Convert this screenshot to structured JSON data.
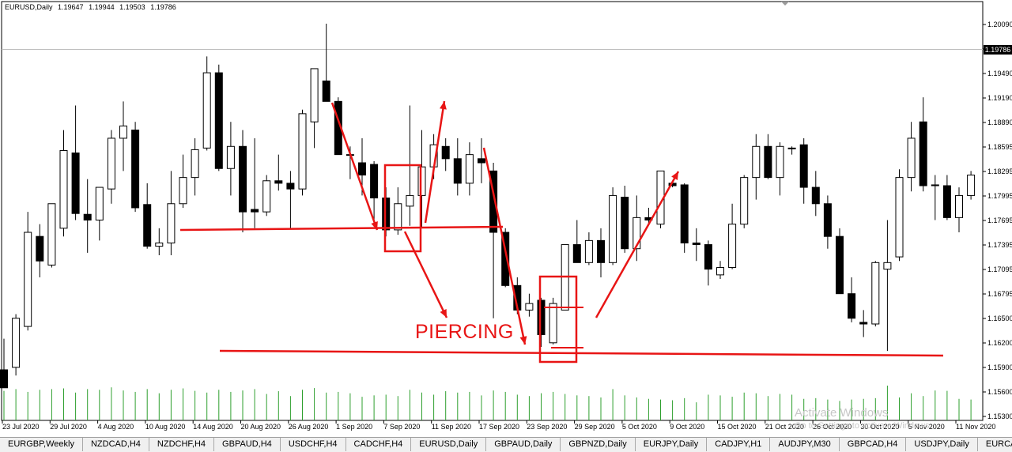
{
  "header": {
    "symbol": "EURUSD,Daily",
    "ohlc": [
      "1.19647",
      "1.19944",
      "1.19503",
      "1.19786"
    ]
  },
  "current_price_label": "1.19786",
  "annotation_label": "PIERCING",
  "watermark": {
    "line1": "Activate Windows",
    "line2": "Go to Settings to activate Windows."
  },
  "colors": {
    "bull_body": "#ffffff",
    "bear_body": "#000000",
    "volume": "#2e9f2e",
    "annotation": "#e81515"
  },
  "tabs": [
    "EURGBP,Weekly",
    "NZDCAD,H4",
    "NZDCHF,H4",
    "GBPAUD,H4",
    "USDCHF,H4",
    "CADCHF,H4",
    "EURUSD,Daily",
    "GBPAUD,Daily",
    "GBPNZD,Daily",
    "EURJPY,Daily",
    "CADJPY,H1",
    "AUDJPY,M30",
    "GBPCAD,H4",
    "USDJPY,Daily",
    "EURCAD,"
  ],
  "chart_data": {
    "type": "candlestick",
    "ylim": [
      1.153,
      1.2032
    ],
    "y_ticks": [
      "1.20090",
      "1.19790",
      "1.19490",
      "1.19190",
      "1.18890",
      "1.18595",
      "1.18295",
      "1.17995",
      "1.17695",
      "1.17395",
      "1.17095",
      "1.16795",
      "1.16500",
      "1.16200",
      "1.15900",
      "1.15600",
      "1.15300"
    ],
    "x_labels": [
      "23 Jul 2020",
      "29 Jul 2020",
      "4 Aug 2020",
      "10 Aug 2020",
      "14 Aug 2020",
      "20 Aug 2020",
      "26 Aug 2020",
      "1 Sep 2020",
      "7 Sep 2020",
      "11 Sep 2020",
      "17 Sep 2020",
      "23 Sep 2020",
      "29 Sep 2020",
      "5 Oct 2020",
      "9 Oct 2020",
      "15 Oct 2020",
      "21 Oct 2020",
      "26 Oct 2020",
      "30 Oct 2020",
      "5 Nov 2020",
      "11 Nov 2020"
    ],
    "candles": [
      {
        "o": 1.1587,
        "h": 1.1625,
        "l": 1.1565,
        "c": 1.1565
      },
      {
        "o": 1.159,
        "h": 1.1655,
        "l": 1.158,
        "c": 1.165
      },
      {
        "o": 1.164,
        "h": 1.178,
        "l": 1.1635,
        "c": 1.1755
      },
      {
        "o": 1.175,
        "h": 1.1765,
        "l": 1.17,
        "c": 1.172
      },
      {
        "o": 1.1715,
        "h": 1.179,
        "l": 1.1712,
        "c": 1.179
      },
      {
        "o": 1.176,
        "h": 1.188,
        "l": 1.175,
        "c": 1.1855
      },
      {
        "o": 1.1852,
        "h": 1.191,
        "l": 1.177,
        "c": 1.1778
      },
      {
        "o": 1.1777,
        "h": 1.182,
        "l": 1.173,
        "c": 1.177
      },
      {
        "o": 1.177,
        "h": 1.181,
        "l": 1.1745,
        "c": 1.181
      },
      {
        "o": 1.1808,
        "h": 1.188,
        "l": 1.179,
        "c": 1.187
      },
      {
        "o": 1.187,
        "h": 1.1915,
        "l": 1.183,
        "c": 1.1885
      },
      {
        "o": 1.188,
        "h": 1.189,
        "l": 1.178,
        "c": 1.1785
      },
      {
        "o": 1.1789,
        "h": 1.1815,
        "l": 1.1735,
        "c": 1.1738
      },
      {
        "o": 1.1738,
        "h": 1.176,
        "l": 1.1727,
        "c": 1.1742
      },
      {
        "o": 1.1742,
        "h": 1.183,
        "l": 1.1727,
        "c": 1.179
      },
      {
        "o": 1.179,
        "h": 1.185,
        "l": 1.1785,
        "c": 1.1822
      },
      {
        "o": 1.1822,
        "h": 1.187,
        "l": 1.18,
        "c": 1.1856
      },
      {
        "o": 1.1858,
        "h": 1.197,
        "l": 1.1855,
        "c": 1.195
      },
      {
        "o": 1.195,
        "h": 1.196,
        "l": 1.183,
        "c": 1.1833
      },
      {
        "o": 1.1833,
        "h": 1.189,
        "l": 1.18,
        "c": 1.186
      },
      {
        "o": 1.186,
        "h": 1.188,
        "l": 1.1755,
        "c": 1.178
      },
      {
        "o": 1.1783,
        "h": 1.187,
        "l": 1.176,
        "c": 1.178
      },
      {
        "o": 1.178,
        "h": 1.1825,
        "l": 1.1775,
        "c": 1.1818
      },
      {
        "o": 1.1818,
        "h": 1.185,
        "l": 1.1806,
        "c": 1.1815
      },
      {
        "o": 1.1815,
        "h": 1.183,
        "l": 1.176,
        "c": 1.1808
      },
      {
        "o": 1.1808,
        "h": 1.1905,
        "l": 1.18,
        "c": 1.19
      },
      {
        "o": 1.189,
        "h": 1.1955,
        "l": 1.1858,
        "c": 1.1955
      },
      {
        "o": 1.194,
        "h": 1.201,
        "l": 1.192,
        "c": 1.1915
      },
      {
        "o": 1.1915,
        "h": 1.192,
        "l": 1.185,
        "c": 1.185
      },
      {
        "o": 1.185,
        "h": 1.186,
        "l": 1.182,
        "c": 1.185
      },
      {
        "o": 1.184,
        "h": 1.187,
        "l": 1.18,
        "c": 1.1825
      },
      {
        "o": 1.1838,
        "h": 1.1842,
        "l": 1.1762,
        "c": 1.1797
      },
      {
        "o": 1.1797,
        "h": 1.181,
        "l": 1.175,
        "c": 1.1758
      },
      {
        "o": 1.1758,
        "h": 1.181,
        "l": 1.1752,
        "c": 1.179
      },
      {
        "o": 1.1787,
        "h": 1.191,
        "l": 1.1763,
        "c": 1.18
      },
      {
        "o": 1.18,
        "h": 1.188,
        "l": 1.176,
        "c": 1.1835
      },
      {
        "o": 1.1835,
        "h": 1.1875,
        "l": 1.182,
        "c": 1.1862
      },
      {
        "o": 1.186,
        "h": 1.187,
        "l": 1.183,
        "c": 1.1845
      },
      {
        "o": 1.1845,
        "h": 1.187,
        "l": 1.18,
        "c": 1.1815
      },
      {
        "o": 1.1815,
        "h": 1.1865,
        "l": 1.18,
        "c": 1.185
      },
      {
        "o": 1.1845,
        "h": 1.187,
        "l": 1.1815,
        "c": 1.184
      },
      {
        "o": 1.183,
        "h": 1.184,
        "l": 1.165,
        "c": 1.1755
      },
      {
        "o": 1.1755,
        "h": 1.176,
        "l": 1.1688,
        "c": 1.169
      },
      {
        "o": 1.169,
        "h": 1.17,
        "l": 1.1655,
        "c": 1.166
      },
      {
        "o": 1.166,
        "h": 1.168,
        "l": 1.1652,
        "c": 1.1668
      },
      {
        "o": 1.1672,
        "h": 1.1675,
        "l": 1.1615,
        "c": 1.163
      },
      {
        "o": 1.162,
        "h": 1.1675,
        "l": 1.1618,
        "c": 1.1668
      },
      {
        "o": 1.166,
        "h": 1.174,
        "l": 1.1665,
        "c": 1.174
      },
      {
        "o": 1.174,
        "h": 1.177,
        "l": 1.172,
        "c": 1.1718
      },
      {
        "o": 1.1718,
        "h": 1.1755,
        "l": 1.1715,
        "c": 1.1745
      },
      {
        "o": 1.1745,
        "h": 1.176,
        "l": 1.17,
        "c": 1.1718
      },
      {
        "o": 1.1718,
        "h": 1.181,
        "l": 1.1715,
        "c": 1.18
      },
      {
        "o": 1.1798,
        "h": 1.1812,
        "l": 1.173,
        "c": 1.1735
      },
      {
        "o": 1.1735,
        "h": 1.18,
        "l": 1.172,
        "c": 1.1773
      },
      {
        "o": 1.1773,
        "h": 1.1785,
        "l": 1.1765,
        "c": 1.177
      },
      {
        "o": 1.1765,
        "h": 1.183,
        "l": 1.176,
        "c": 1.183
      },
      {
        "o": 1.1815,
        "h": 1.1817,
        "l": 1.181,
        "c": 1.1812
      },
      {
        "o": 1.1813,
        "h": 1.1815,
        "l": 1.173,
        "c": 1.1742
      },
      {
        "o": 1.1742,
        "h": 1.176,
        "l": 1.172,
        "c": 1.174
      },
      {
        "o": 1.174,
        "h": 1.1745,
        "l": 1.169,
        "c": 1.171
      },
      {
        "o": 1.1703,
        "h": 1.172,
        "l": 1.1698,
        "c": 1.1712
      },
      {
        "o": 1.1712,
        "h": 1.179,
        "l": 1.171,
        "c": 1.1765
      },
      {
        "o": 1.1765,
        "h": 1.1825,
        "l": 1.176,
        "c": 1.1822
      },
      {
        "o": 1.1822,
        "h": 1.1875,
        "l": 1.1795,
        "c": 1.186
      },
      {
        "o": 1.186,
        "h": 1.1875,
        "l": 1.182,
        "c": 1.1822
      },
      {
        "o": 1.1822,
        "h": 1.1865,
        "l": 1.18,
        "c": 1.186
      },
      {
        "o": 1.1858,
        "h": 1.186,
        "l": 1.185,
        "c": 1.1857
      },
      {
        "o": 1.1862,
        "h": 1.187,
        "l": 1.179,
        "c": 1.181
      },
      {
        "o": 1.181,
        "h": 1.183,
        "l": 1.1775,
        "c": 1.179
      },
      {
        "o": 1.179,
        "h": 1.18,
        "l": 1.1735,
        "c": 1.175
      },
      {
        "o": 1.175,
        "h": 1.176,
        "l": 1.168,
        "c": 1.168
      },
      {
        "o": 1.168,
        "h": 1.17,
        "l": 1.1645,
        "c": 1.165
      },
      {
        "o": 1.1645,
        "h": 1.166,
        "l": 1.1627,
        "c": 1.1643
      },
      {
        "o": 1.1643,
        "h": 1.172,
        "l": 1.164,
        "c": 1.1718
      },
      {
        "o": 1.171,
        "h": 1.177,
        "l": 1.161,
        "c": 1.1718
      },
      {
        "o": 1.1725,
        "h": 1.1832,
        "l": 1.172,
        "c": 1.1822
      },
      {
        "o": 1.1822,
        "h": 1.189,
        "l": 1.1805,
        "c": 1.187
      },
      {
        "o": 1.189,
        "h": 1.192,
        "l": 1.1805,
        "c": 1.1812
      },
      {
        "o": 1.1812,
        "h": 1.1825,
        "l": 1.177,
        "c": 1.1813
      },
      {
        "o": 1.1812,
        "h": 1.1825,
        "l": 1.177,
        "c": 1.1773
      },
      {
        "o": 1.1773,
        "h": 1.181,
        "l": 1.1755,
        "c": 1.18
      },
      {
        "o": 1.18,
        "h": 1.183,
        "l": 1.1795,
        "c": 1.1825
      }
    ],
    "volume": [
      0.85,
      0.9,
      0.82,
      0.88,
      0.9,
      0.92,
      0.8,
      0.9,
      0.88,
      0.95,
      0.86,
      0.82,
      0.9,
      0.78,
      0.88,
      0.92,
      0.85,
      0.8,
      0.88,
      0.82,
      0.86,
      0.9,
      0.76,
      0.84,
      0.7,
      0.88,
      0.93,
      0.8,
      0.82,
      0.78,
      0.68,
      0.72,
      0.74,
      0.7,
      0.88,
      0.8,
      0.74,
      0.84,
      0.8,
      0.82,
      0.72,
      0.86,
      0.82,
      0.74,
      0.7,
      0.78,
      0.82,
      0.76,
      0.72,
      0.7,
      0.66,
      0.9,
      0.72,
      0.66,
      0.62,
      0.6,
      0.58,
      0.64,
      0.52,
      0.74,
      0.72,
      0.68,
      0.8,
      0.78,
      0.7,
      0.76,
      0.74,
      0.62,
      0.64,
      0.6,
      0.56,
      0.6,
      0.62,
      0.64,
      1.0,
      0.66,
      0.78,
      0.7,
      0.86,
      0.85,
      0.62,
      0.6
    ]
  }
}
